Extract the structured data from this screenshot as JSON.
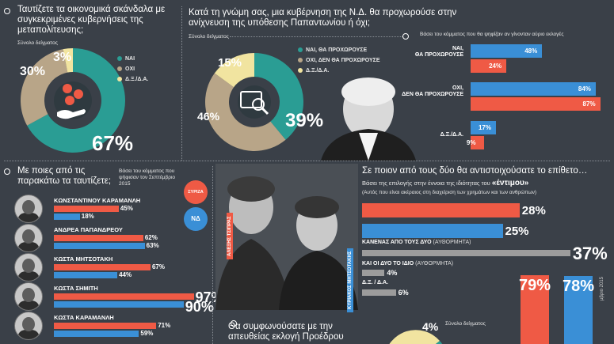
{
  "q1": {
    "title": "Ταυτίζετε τα οικονομικά σκάνδαλα με συγκεκριμένες κυβερνήσεις της μεταπολίτευσης;",
    "sample": "Σύνολο δείγματος",
    "legend": [
      "ΝΑΙ",
      "ΟΧΙ",
      "Δ.Ξ./Δ.Α."
    ],
    "labels": [
      "67%",
      "30%",
      "3%"
    ]
  },
  "q2": {
    "title": "Κατά τη γνώμη σας, μια κυβέρνηση της Ν.Δ. θα προχωρούσε στην ανίχνευση της υπόθεσης Παπαντωνίου ή όχι;",
    "sample": "Σύνολο δείγματος",
    "legend": [
      "ΝΑΙ, ΘΑ ΠΡΟΧΩΡΟΥΣΕ",
      "ΟΧΙ, ΔΕΝ ΘΑ ΠΡΟΧΩΡΟΥΣΕ",
      "Δ.Ξ./Δ.Α."
    ],
    "labels": [
      "39%",
      "46%",
      "15%"
    ],
    "party_note": "Βάσει του κόμματος που θα ψηφίζαν αν γίνονταν αύριο εκλογές",
    "bar_cats": [
      "ΝΑΙ,\nΘΑ ΠΡΟΧΩΡΟΥΣΕ",
      "ΟΧΙ,\nΔΕΝ ΘΑ ΠΡΟΧΩΡΟΥΣΕ",
      "Δ.Ξ./Δ.Α."
    ],
    "bar_labels_blue": [
      "48%",
      "84%",
      "17%"
    ],
    "bar_labels_red": [
      "24%",
      "87%",
      "9%"
    ]
  },
  "q3": {
    "title": "Με ποιες από τις παρακάτω τα ταυτίζετε;",
    "note": "Βάσει του κόμματος που ψήφισαν τον Σεπτέμβριο 2015",
    "party1": "ΣΥΡΙΖΑ",
    "party2": "ΝΔ",
    "people": [
      {
        "name": "ΚΩΝΣΤΑΝΤΙΝΟΥ ΚΑΡΑΜΑΝΛΗ",
        "red": "45%",
        "blue": "18%"
      },
      {
        "name": "ΑΝΔΡΕΑ ΠΑΠΑΝΔΡΕΟΥ",
        "red": "62%",
        "blue": "63%"
      },
      {
        "name": "ΚΩΣΤΑ ΜΗΤΣΟΤΑΚΗ",
        "red": "67%",
        "blue": "44%"
      },
      {
        "name": "ΚΩΣΤΑ ΣΗΜΙΤΗ",
        "red": "97%",
        "blue": "90%"
      },
      {
        "name": "ΚΩΣΤΑ ΚΑΡΑΜΑΝΛΗ",
        "red": "71%",
        "blue": "59%"
      }
    ]
  },
  "q4": {
    "title": "Σε ποιον από τους δύο θα αντιστοιχούσατε το επίθετο…",
    "subtitle_a": "Βάσει της επιλογής στην έννοια της ιδιότητας του",
    "subtitle_word": "«έντιμου»",
    "subtitle_b": "(Αυτός που είναι ακέραιος στη διαχείριση των χρημάτων και των ανθρώπων)",
    "rows": [
      {
        "label": "",
        "value": "28%"
      },
      {
        "label": "",
        "value": "25%"
      },
      {
        "label": "ΚΑΝΕΝΑΣ ΑΠΟ ΤΟΥΣ ΔΥΟ",
        "tag": "(ΑΥΘΟΡΜΗΤΑ)",
        "value": "37%"
      },
      {
        "label": "ΚΑΙ ΟΙ ΔΥΟ ΤΟ ΙΔΙΟ",
        "tag": "(ΑΥΘΟΡΜΗΤΑ)",
        "value": "4%"
      },
      {
        "label": "Δ.Ξ. / Δ.Α.",
        "tag": "",
        "value": "6%"
      }
    ],
    "tall_red": "79%",
    "tall_blue": "78%",
    "photo_label_1": "ΑΛΕΞΗΣ ΤΣΙΠΡΑΣ",
    "photo_label_2": "ΚΥΡΙΑΚΟΣ ΜΗΤΣΟΤΑΚΗΣ"
  },
  "q5": {
    "title": "Θα συμφωνούσατε με την απευθείας εκλογή Προέδρου",
    "sample": "Σύνολο δείγματος",
    "label": "4%",
    "edge": "μβριο 2015"
  },
  "chart_data": [
    {
      "type": "pie",
      "title": "Ταυτίζετε τα οικονομικά σκάνδαλα με συγκεκριμένες κυβερνήσεις της μεταπολίτευσης;",
      "categories": [
        "ΝΑΙ",
        "ΟΧΙ",
        "Δ.Ξ./Δ.Α."
      ],
      "values": [
        67,
        30,
        3
      ]
    },
    {
      "type": "pie",
      "title": "Κατά τη γνώμη σας, μια κυβέρνηση της Ν.Δ. θα προχωρούσε στην ανίχνευση της υπόθεσης Παπαντωνίου ή όχι;",
      "categories": [
        "ΝΑΙ, ΘΑ ΠΡΟΧΩΡΟΥΣΕ",
        "ΟΧΙ, ΔΕΝ ΘΑ ΠΡΟΧΩΡΟΥΣΕ",
        "Δ.Ξ./Δ.Α."
      ],
      "values": [
        39,
        46,
        15
      ]
    },
    {
      "type": "bar",
      "categories": [
        "ΝΑΙ, ΘΑ ΠΡΟΧΩΡΟΥΣΕ",
        "ΟΧΙ, ΔΕΝ ΘΑ ΠΡΟΧΩΡΟΥΣΕ",
        "Δ.Ξ./Δ.Α."
      ],
      "series": [
        {
          "color": "#3a8fd6",
          "values": [
            48,
            84,
            17
          ]
        },
        {
          "color": "#ef5a45",
          "values": [
            24,
            87,
            9
          ]
        }
      ],
      "ylim": [
        0,
        100
      ]
    },
    {
      "type": "bar",
      "title": "Με ποιες από τις παρακάτω τα ταυτίζετε;",
      "categories": [
        "ΚΩΝΣΤΑΝΤΙΝΟΥ ΚΑΡΑΜΑΝΛΗ",
        "ΑΝΔΡΕΑ ΠΑΠΑΝΔΡΕΟΥ",
        "ΚΩΣΤΑ ΜΗΤΣΟΤΑΚΗ",
        "ΚΩΣΤΑ ΣΗΜΙΤΗ",
        "ΚΩΣΤΑ ΚΑΡΑΜΑΝΛΗ"
      ],
      "series": [
        {
          "name": "ΣΥΡΙΖΑ",
          "color": "#ef5a45",
          "values": [
            45,
            62,
            67,
            97,
            71
          ]
        },
        {
          "name": "ΝΔ",
          "color": "#3a8fd6",
          "values": [
            18,
            63,
            44,
            90,
            59
          ]
        }
      ],
      "ylim": [
        0,
        100
      ]
    },
    {
      "type": "bar",
      "title": "Σε ποιον από τους δύο θα αντιστοιχούσατε το επίθετο…",
      "categories": [
        "",
        "",
        "ΚΑΝΕΝΑΣ ΑΠΟ ΤΟΥΣ ΔΥΟ",
        "ΚΑΙ ΟΙ ΔΥΟ ΤΟ ΙΔΙΟ",
        "Δ.Ξ. / Δ.Α."
      ],
      "values": [
        28,
        25,
        37,
        4,
        6
      ],
      "colors": [
        "#ef5a45",
        "#3a8fd6",
        "#9c9c9c",
        "#9c9c9c",
        "#9c9c9c"
      ]
    },
    {
      "type": "bar",
      "values": [
        79,
        78
      ],
      "colors": [
        "#ef5a45",
        "#3a8fd6"
      ]
    }
  ],
  "colors": {
    "blue": "#3a8fd6",
    "red": "#ef5a45",
    "tan": "#b8a588",
    "yellow": "#f1e4a0",
    "teal": "#2a9d94",
    "bg": "#3a4048"
  }
}
